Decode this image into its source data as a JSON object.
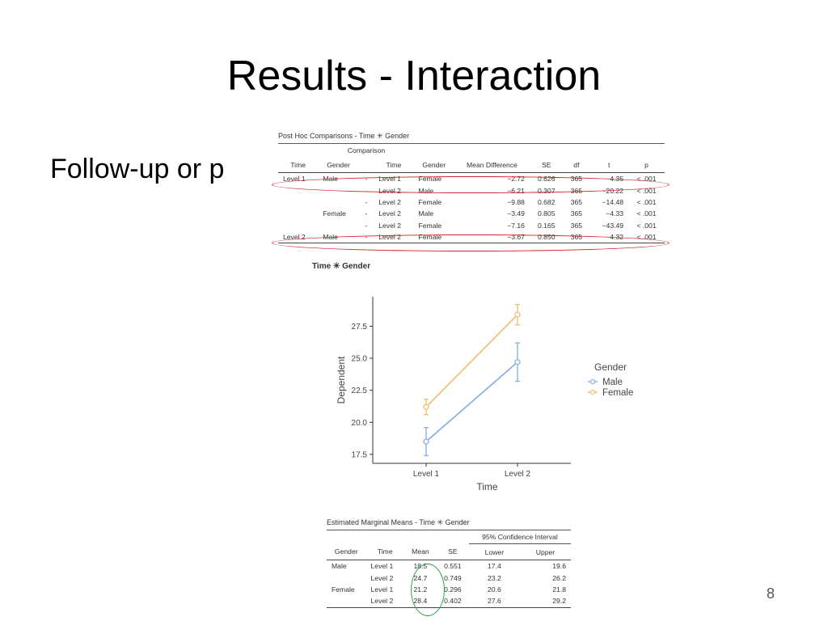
{
  "slide": {
    "title": "Results - Interaction",
    "body_text": "Follow-up or p",
    "slide_number": "8"
  },
  "posthoc": {
    "title": "Post Hoc Comparisons - Time ✳ Gender",
    "group_header": "Comparison",
    "headers": [
      "Time",
      "Gender",
      "",
      "Time",
      "Gender",
      "Mean Difference",
      "SE",
      "df",
      "t",
      "p"
    ],
    "rows": [
      [
        "Level 1",
        "Male",
        "-",
        "Level 1",
        "Female",
        "−2.72",
        "0.626",
        "365",
        "−4.35",
        "< .001"
      ],
      [
        "",
        "",
        "-",
        "Level 2",
        "Male",
        "−6.21",
        "0.307",
        "365",
        "−20.22",
        "< .001"
      ],
      [
        "",
        "",
        "-",
        "Level 2",
        "Female",
        "−9.88",
        "0.682",
        "365",
        "−14.48",
        "< .001"
      ],
      [
        "",
        "Female",
        "-",
        "Level 2",
        "Male",
        "−3.49",
        "0.805",
        "365",
        "−4.33",
        "< .001"
      ],
      [
        "",
        "",
        "-",
        "Level 2",
        "Female",
        "−7.16",
        "0.165",
        "365",
        "−43.49",
        "< .001"
      ],
      [
        "Level 2",
        "Male",
        "-",
        "Level 2",
        "Female",
        "−3.67",
        "0.850",
        "365",
        "−4.32",
        "< .001"
      ]
    ]
  },
  "plot": {
    "title": "Time ✳ Gender"
  },
  "emm": {
    "title": "Estimated Marginal Means - Time ✳ Gender",
    "ci_header": "95% Confidence Interval",
    "headers": [
      "Gender",
      "Time",
      "Mean",
      "SE",
      "Lower",
      "Upper"
    ],
    "rows": [
      [
        "Male",
        "Level 1",
        "18.5",
        "0.551",
        "17.4",
        "19.6"
      ],
      [
        "",
        "Level 2",
        "24.7",
        "0.749",
        "23.2",
        "26.2"
      ],
      [
        "Female",
        "Level 1",
        "21.2",
        "0.296",
        "20.6",
        "21.8"
      ],
      [
        "",
        "Level 2",
        "28.4",
        "0.402",
        "27.6",
        "29.2"
      ]
    ]
  },
  "chart_data": {
    "type": "line",
    "categories": [
      "Level 1",
      "Level 2"
    ],
    "series": [
      {
        "name": "Male",
        "values": [
          18.5,
          24.7
        ],
        "lower": [
          17.4,
          23.2
        ],
        "upper": [
          19.6,
          26.2
        ],
        "color": "#8fb0e6"
      },
      {
        "name": "Female",
        "values": [
          21.2,
          28.4
        ],
        "lower": [
          20.6,
          27.6
        ],
        "upper": [
          21.8,
          29.2
        ],
        "color": "#f0c07a"
      }
    ],
    "xlabel": "Time",
    "ylabel": "Dependent",
    "yticks": [
      17.5,
      20.0,
      22.5,
      25.0,
      27.5
    ],
    "yticklabels": [
      "17.5",
      "20.0",
      "22.5",
      "25.0",
      "27.5"
    ],
    "ylim": [
      16.8,
      29.8
    ],
    "legend_title": "Gender",
    "legend_position": "right",
    "grid": false
  }
}
